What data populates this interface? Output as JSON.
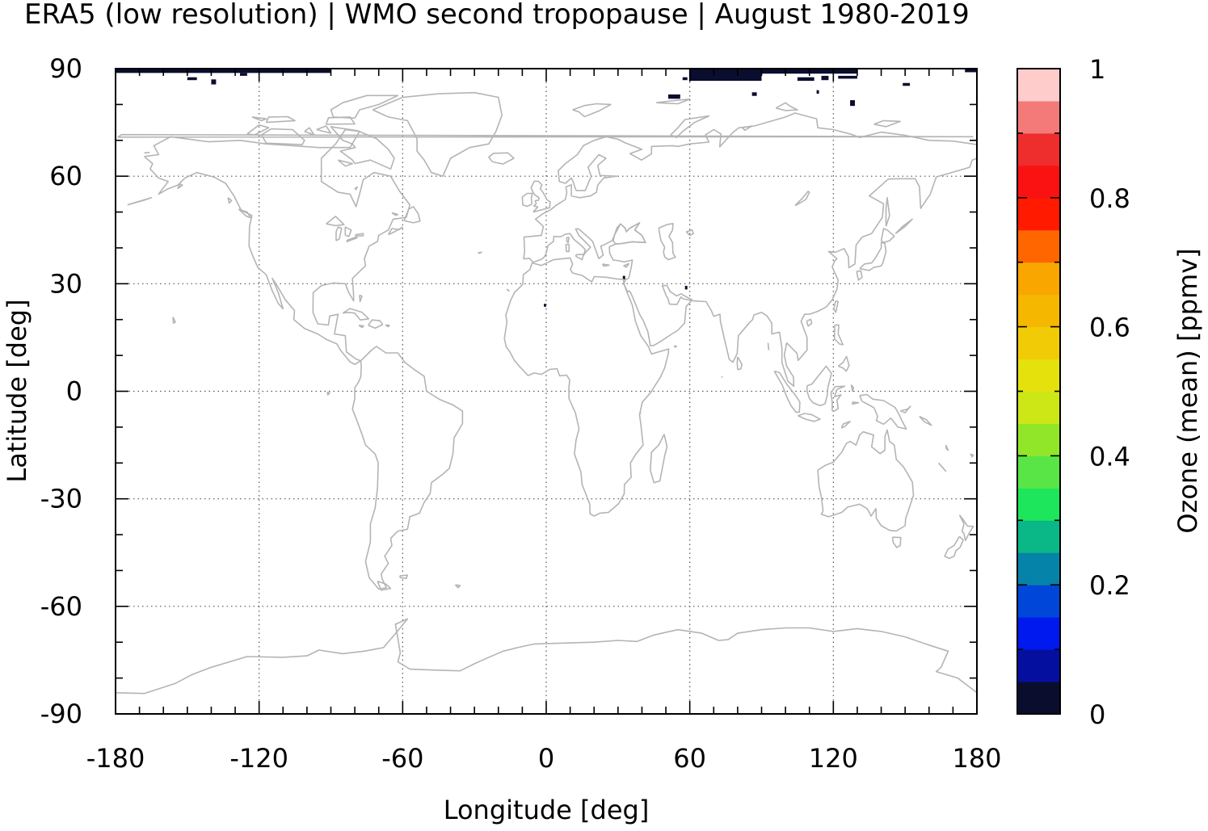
{
  "title": "ERA5 (low resolution) | WMO second tropopause | August 1980-2019",
  "map": {
    "projection": "plate-carree",
    "extent": {
      "lon": [
        -180,
        180
      ],
      "lat": [
        -90,
        90
      ]
    },
    "xlabel": "Longitude [deg]",
    "ylabel": "Latitude [deg]",
    "x_ticks": [
      -180,
      -120,
      -60,
      0,
      60,
      120,
      180
    ],
    "y_ticks": [
      90,
      60,
      30,
      0,
      -30,
      -60,
      -90
    ],
    "grid": true,
    "coastline_color": "#b4b4b4",
    "data_cells": [
      {
        "lon0": -180,
        "lon1": -90,
        "lat0": 88.8,
        "lat1": 90,
        "value": 0.02
      },
      {
        "lon0": -150,
        "lon1": -146,
        "lat0": 86.8,
        "lat1": 87.6,
        "value": 0.02
      },
      {
        "lon0": -140,
        "lon1": -138,
        "lat0": 85.6,
        "lat1": 87.0,
        "value": 0.02
      },
      {
        "lon0": -128,
        "lon1": -125,
        "lat0": 88.0,
        "lat1": 88.8,
        "value": 0.02
      },
      {
        "lon0": 60,
        "lon1": 90,
        "lat0": 86.6,
        "lat1": 90,
        "value": 0.02
      },
      {
        "lon0": 90,
        "lon1": 130,
        "lat0": 88.6,
        "lat1": 90,
        "value": 0.02
      },
      {
        "lon0": 57,
        "lon1": 59,
        "lat0": 86.8,
        "lat1": 87.6,
        "value": 0.02
      },
      {
        "lon0": 105,
        "lon1": 112,
        "lat0": 86.6,
        "lat1": 87.6,
        "value": 0.02
      },
      {
        "lon0": 115,
        "lon1": 118,
        "lat0": 86.8,
        "lat1": 88.0,
        "value": 0.02
      },
      {
        "lon0": 122,
        "lon1": 130,
        "lat0": 87.2,
        "lat1": 88.0,
        "value": 0.02
      },
      {
        "lon0": 51,
        "lon1": 56,
        "lat0": 81.6,
        "lat1": 82.8,
        "value": 0.02
      },
      {
        "lon0": 86,
        "lon1": 88,
        "lat0": 82.4,
        "lat1": 83.4,
        "value": 0.02
      },
      {
        "lon0": 113,
        "lon1": 114,
        "lat0": 83.0,
        "lat1": 84.0,
        "value": 0.02
      },
      {
        "lon0": 127,
        "lon1": 129,
        "lat0": 79.6,
        "lat1": 81.2,
        "value": 0.02
      },
      {
        "lon0": 149,
        "lon1": 152,
        "lat0": 85.2,
        "lat1": 86.0,
        "value": 0.02
      },
      {
        "lon0": 175,
        "lon1": 180,
        "lat0": 89.0,
        "lat1": 90,
        "value": 0.02
      },
      {
        "lon0": -1,
        "lon1": 0,
        "lat0": 23.6,
        "lat1": 24.4,
        "value": 0.02
      },
      {
        "lon0": 32,
        "lon1": 33,
        "lat0": 31.2,
        "lat1": 32.2,
        "value": 0.02
      },
      {
        "lon0": 58,
        "lon1": 59,
        "lat0": 28.4,
        "lat1": 29.4,
        "value": 0.02
      }
    ]
  },
  "colorbar": {
    "label": "Ozone (mean) [ppmv]",
    "range": [
      0,
      1
    ],
    "tick_values": [
      0,
      0.2,
      0.4,
      0.6,
      0.8,
      1
    ],
    "tick_labels": [
      "0",
      "0.2",
      "0.4",
      "0.6",
      "0.8",
      "1"
    ],
    "colors": [
      "#0b0d2e",
      "#050f9f",
      "#0019ef",
      "#0047d9",
      "#0683a8",
      "#09b787",
      "#1de65c",
      "#5ae546",
      "#91e629",
      "#cde615",
      "#e5e10c",
      "#f1cb06",
      "#f5b700",
      "#f9a600",
      "#ff6600",
      "#ff1a00",
      "#fa1111",
      "#ee2d2d",
      "#f47a7a",
      "#ffcccc"
    ]
  }
}
